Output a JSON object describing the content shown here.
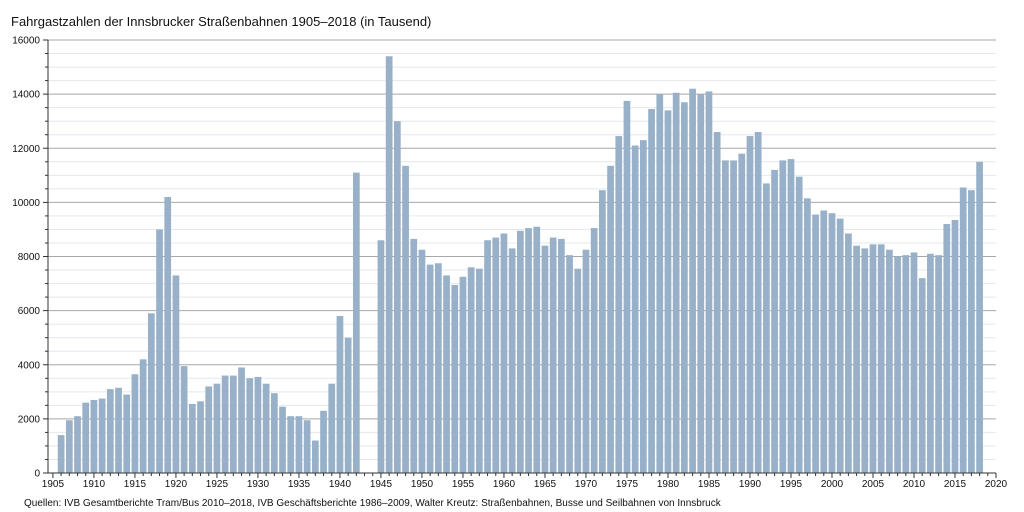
{
  "chart_data": {
    "type": "bar",
    "title": "Fahrgastzahlen der Innsbrucker Straßenbahnen 1905–2018 (in Tausend)",
    "source": "Quellen: IVB Gesamtberichte Tram/Bus 2010–2018, IVB Geschäftsberichte 1986–2009, Walter Kreutz: Straßenbahnen, Busse und Seilbahnen von Innsbruck",
    "xlabel": "",
    "ylabel": "",
    "xlim": [
      1904.4,
      2020
    ],
    "ylim": [
      0,
      16000
    ],
    "grid": true,
    "bar_color": "#98b1c8",
    "x_ticks": [
      1905,
      1910,
      1915,
      1920,
      1925,
      1930,
      1935,
      1940,
      1945,
      1950,
      1955,
      1960,
      1965,
      1970,
      1975,
      1980,
      1985,
      1990,
      1995,
      2000,
      2005,
      2010,
      2015,
      2020
    ],
    "y_ticks": [
      0,
      2000,
      4000,
      6000,
      8000,
      10000,
      12000,
      14000,
      16000
    ],
    "data": [
      {
        "year": 1906,
        "value": 1400
      },
      {
        "year": 1907,
        "value": 1950
      },
      {
        "year": 1908,
        "value": 2100
      },
      {
        "year": 1909,
        "value": 2600
      },
      {
        "year": 1910,
        "value": 2700
      },
      {
        "year": 1911,
        "value": 2750
      },
      {
        "year": 1912,
        "value": 3100
      },
      {
        "year": 1913,
        "value": 3150
      },
      {
        "year": 1914,
        "value": 2900
      },
      {
        "year": 1915,
        "value": 3650
      },
      {
        "year": 1916,
        "value": 4200
      },
      {
        "year": 1917,
        "value": 5900
      },
      {
        "year": 1918,
        "value": 9000
      },
      {
        "year": 1919,
        "value": 10200
      },
      {
        "year": 1920,
        "value": 7300
      },
      {
        "year": 1921,
        "value": 3950
      },
      {
        "year": 1922,
        "value": 2550
      },
      {
        "year": 1923,
        "value": 2650
      },
      {
        "year": 1924,
        "value": 3200
      },
      {
        "year": 1925,
        "value": 3300
      },
      {
        "year": 1926,
        "value": 3600
      },
      {
        "year": 1927,
        "value": 3600
      },
      {
        "year": 1928,
        "value": 3900
      },
      {
        "year": 1929,
        "value": 3500
      },
      {
        "year": 1930,
        "value": 3550
      },
      {
        "year": 1931,
        "value": 3300
      },
      {
        "year": 1932,
        "value": 2950
      },
      {
        "year": 1933,
        "value": 2450
      },
      {
        "year": 1934,
        "value": 2100
      },
      {
        "year": 1935,
        "value": 2100
      },
      {
        "year": 1936,
        "value": 1950
      },
      {
        "year": 1937,
        "value": 1200
      },
      {
        "year": 1938,
        "value": 2300
      },
      {
        "year": 1939,
        "value": 3300
      },
      {
        "year": 1940,
        "value": 5800
      },
      {
        "year": 1941,
        "value": 5000
      },
      {
        "year": 1942,
        "value": 11100
      },
      {
        "year": 1945,
        "value": 8600
      },
      {
        "year": 1946,
        "value": 15400
      },
      {
        "year": 1947,
        "value": 13000
      },
      {
        "year": 1948,
        "value": 11350
      },
      {
        "year": 1949,
        "value": 8650
      },
      {
        "year": 1950,
        "value": 8250
      },
      {
        "year": 1951,
        "value": 7700
      },
      {
        "year": 1952,
        "value": 7750
      },
      {
        "year": 1953,
        "value": 7300
      },
      {
        "year": 1954,
        "value": 6950
      },
      {
        "year": 1955,
        "value": 7250
      },
      {
        "year": 1956,
        "value": 7600
      },
      {
        "year": 1957,
        "value": 7550
      },
      {
        "year": 1958,
        "value": 8600
      },
      {
        "year": 1959,
        "value": 8700
      },
      {
        "year": 1960,
        "value": 8850
      },
      {
        "year": 1961,
        "value": 8300
      },
      {
        "year": 1962,
        "value": 8950
      },
      {
        "year": 1963,
        "value": 9050
      },
      {
        "year": 1964,
        "value": 9100
      },
      {
        "year": 1965,
        "value": 8400
      },
      {
        "year": 1966,
        "value": 8700
      },
      {
        "year": 1967,
        "value": 8650
      },
      {
        "year": 1968,
        "value": 8050
      },
      {
        "year": 1969,
        "value": 7550
      },
      {
        "year": 1970,
        "value": 8250
      },
      {
        "year": 1971,
        "value": 9050
      },
      {
        "year": 1972,
        "value": 10450
      },
      {
        "year": 1973,
        "value": 11350
      },
      {
        "year": 1974,
        "value": 12450
      },
      {
        "year": 1975,
        "value": 13750
      },
      {
        "year": 1976,
        "value": 12100
      },
      {
        "year": 1977,
        "value": 12300
      },
      {
        "year": 1978,
        "value": 13450
      },
      {
        "year": 1979,
        "value": 14000
      },
      {
        "year": 1980,
        "value": 13400
      },
      {
        "year": 1981,
        "value": 14050
      },
      {
        "year": 1982,
        "value": 13700
      },
      {
        "year": 1983,
        "value": 14200
      },
      {
        "year": 1984,
        "value": 14000
      },
      {
        "year": 1985,
        "value": 14100
      },
      {
        "year": 1986,
        "value": 12600
      },
      {
        "year": 1987,
        "value": 11550
      },
      {
        "year": 1988,
        "value": 11550
      },
      {
        "year": 1989,
        "value": 11800
      },
      {
        "year": 1990,
        "value": 12450
      },
      {
        "year": 1991,
        "value": 12600
      },
      {
        "year": 1992,
        "value": 10700
      },
      {
        "year": 1993,
        "value": 11200
      },
      {
        "year": 1994,
        "value": 11550
      },
      {
        "year": 1995,
        "value": 11600
      },
      {
        "year": 1996,
        "value": 10950
      },
      {
        "year": 1997,
        "value": 10150
      },
      {
        "year": 1998,
        "value": 9550
      },
      {
        "year": 1999,
        "value": 9700
      },
      {
        "year": 2000,
        "value": 9600
      },
      {
        "year": 2001,
        "value": 9400
      },
      {
        "year": 2002,
        "value": 8850
      },
      {
        "year": 2003,
        "value": 8400
      },
      {
        "year": 2004,
        "value": 8300
      },
      {
        "year": 2005,
        "value": 8450
      },
      {
        "year": 2006,
        "value": 8450
      },
      {
        "year": 2007,
        "value": 8250
      },
      {
        "year": 2008,
        "value": 8000
      },
      {
        "year": 2009,
        "value": 8050
      },
      {
        "year": 2010,
        "value": 8150
      },
      {
        "year": 2011,
        "value": 7200
      },
      {
        "year": 2012,
        "value": 8100
      },
      {
        "year": 2013,
        "value": 8050
      },
      {
        "year": 2014,
        "value": 9200
      },
      {
        "year": 2015,
        "value": 9350
      },
      {
        "year": 2016,
        "value": 10550
      },
      {
        "year": 2017,
        "value": 10450
      },
      {
        "year": 2018,
        "value": 11500
      }
    ]
  }
}
